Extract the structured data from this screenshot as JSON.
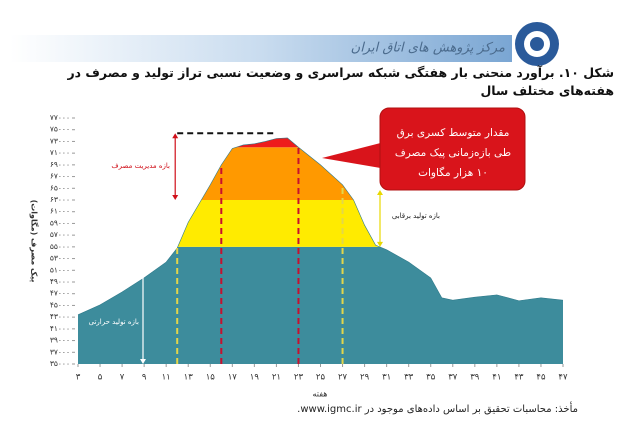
{
  "header": {
    "title": "مرکز پژوهش های اتاق ایران"
  },
  "caption": "شکل ۱۰. برآورد منحنی بار هفتگی شبکه سراسری و وضعیت نسبی تراز تولید و مصرف در هفته‌های مختلف سال",
  "source": "مأخذ: محاسبات تحقیق بر اساس داده‌های موجود در www.igmc.ir.",
  "chart_data": {
    "type": "area-bands",
    "x_label": "هفته",
    "y_label": "پیک مصرف (مگاوات)",
    "x": [
      3,
      5,
      7,
      9,
      11,
      12,
      13,
      15,
      16,
      17,
      18,
      19,
      20,
      21,
      22,
      23,
      25,
      27,
      28,
      29,
      30,
      31,
      33,
      35,
      36,
      37,
      39,
      41,
      43,
      45,
      47
    ],
    "values": [
      43400,
      45100,
      47300,
      49700,
      52400,
      54800,
      59200,
      65600,
      69000,
      71800,
      72400,
      72600,
      73000,
      73500,
      73600,
      72000,
      69000,
      65600,
      63000,
      58700,
      55300,
      54500,
      52400,
      49700,
      46300,
      45900,
      46400,
      46800,
      45800,
      46300,
      45900
    ],
    "xlim": [
      3,
      47
    ],
    "xticks": [
      {
        "value": 3,
        "label": "۳"
      },
      {
        "value": 5,
        "label": "۵"
      },
      {
        "value": 7,
        "label": "۷"
      },
      {
        "value": 9,
        "label": "۹"
      },
      {
        "value": 11,
        "label": "۱۱"
      },
      {
        "value": 13,
        "label": "۱۳"
      },
      {
        "value": 15,
        "label": "۱۵"
      },
      {
        "value": 17,
        "label": "۱۷"
      },
      {
        "value": 19,
        "label": "۱۹"
      },
      {
        "value": 21,
        "label": "۲۱"
      },
      {
        "value": 23,
        "label": "۲۳"
      },
      {
        "value": 25,
        "label": "۲۵"
      },
      {
        "value": 27,
        "label": "۲۷"
      },
      {
        "value": 29,
        "label": "۲۹"
      },
      {
        "value": 31,
        "label": "۳۱"
      },
      {
        "value": 33,
        "label": "۳۳"
      },
      {
        "value": 35,
        "label": "۳۵"
      },
      {
        "value": 37,
        "label": "۳۷"
      },
      {
        "value": 39,
        "label": "۳۹"
      },
      {
        "value": 41,
        "label": "۴۱"
      },
      {
        "value": 43,
        "label": "۴۳"
      },
      {
        "value": 45,
        "label": "۴۵"
      },
      {
        "value": 47,
        "label": "۴۷"
      }
    ],
    "ylim": [
      35000,
      77000
    ],
    "yticks": [
      {
        "value": 35000,
        "label": "۳۵۰۰۰"
      },
      {
        "value": 37000,
        "label": "۳۷۰۰۰"
      },
      {
        "value": 39000,
        "label": "۳۹۰۰۰"
      },
      {
        "value": 41000,
        "label": "۴۱۰۰۰"
      },
      {
        "value": 43000,
        "label": "۴۳۰۰۰"
      },
      {
        "value": 45000,
        "label": "۴۵۰۰۰"
      },
      {
        "value": 47000,
        "label": "۴۷۰۰۰"
      },
      {
        "value": 49000,
        "label": "۴۹۰۰۰"
      },
      {
        "value": 51000,
        "label": "۵۱۰۰۰"
      },
      {
        "value": 53000,
        "label": "۵۳۰۰۰"
      },
      {
        "value": 55000,
        "label": "۵۵۰۰۰"
      },
      {
        "value": 57000,
        "label": "۵۷۰۰۰"
      },
      {
        "value": 59000,
        "label": "۵۹۰۰۰"
      },
      {
        "value": 61000,
        "label": "۶۱۰۰۰"
      },
      {
        "value": 63000,
        "label": "۶۳۰۰۰"
      },
      {
        "value": 65000,
        "label": "۶۵۰۰۰"
      },
      {
        "value": 67000,
        "label": "۶۷۰۰۰"
      },
      {
        "value": 69000,
        "label": "۶۹۰۰۰"
      },
      {
        "value": 71000,
        "label": "۷۱۰۰۰"
      },
      {
        "value": 73000,
        "label": "۷۳۰۰۰"
      },
      {
        "value": 75000,
        "label": "۷۵۰۰۰"
      },
      {
        "value": 77000,
        "label": "۷۷۰۰۰"
      }
    ],
    "bands": [
      {
        "to": 55000,
        "color": "#3d8c9c"
      },
      {
        "to": 63000,
        "color": "#ffeb00"
      },
      {
        "to": 72000,
        "color": "#ff9900"
      },
      {
        "to": 77000,
        "color": "#ee1c1c"
      }
    ],
    "reference_lines": [
      {
        "x": 12,
        "color": "#e3d64a"
      },
      {
        "x": 16,
        "color": "#c8102e"
      },
      {
        "x": 23,
        "color": "#c8102e"
      },
      {
        "x": 27,
        "color": "#e3d64a"
      }
    ],
    "peak_line": {
      "value": 74400,
      "x": [
        12,
        21
      ]
    },
    "annotations": {
      "thermal": "بازه تولید حرارتی",
      "hydro": "بازه تولید برقابی",
      "management": "بازه مدیریت مصرف"
    },
    "callout": [
      "مقدار متوسط کسری برق",
      "طی بازه‌زمانی پیک مصرف",
      "۱۰ هزار مگاوات"
    ]
  }
}
